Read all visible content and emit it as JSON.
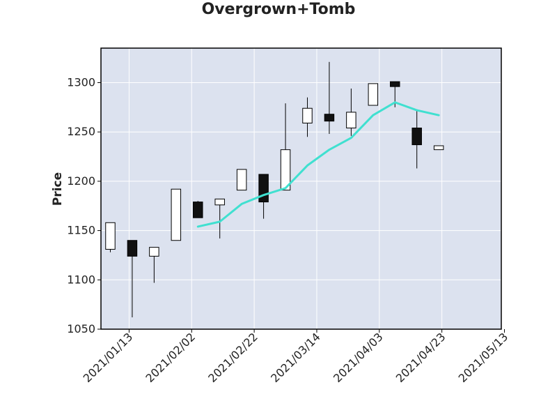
{
  "chart_data": {
    "type": "candlestick",
    "title": "Overgrown+Tomb",
    "xlabel": "",
    "ylabel": "Price",
    "ylim": [
      1050,
      1335
    ],
    "xlim": [
      "2021-01-04",
      "2021-05-12"
    ],
    "yticks": [
      1050,
      1100,
      1150,
      1200,
      1250,
      1300
    ],
    "xticks": [
      "2021/01/13",
      "2021/02/02",
      "2021/02/22",
      "2021/03/14",
      "2021/04/03",
      "2021/04/23",
      "2021/05/13"
    ],
    "grid": true,
    "candles": [
      {
        "date": "2021-01-07",
        "open": 1131,
        "high": 1158,
        "low": 1128,
        "close": 1158
      },
      {
        "date": "2021-01-14",
        "open": 1140,
        "high": 1140,
        "low": 1062,
        "close": 1124
      },
      {
        "date": "2021-01-21",
        "open": 1124,
        "high": 1133,
        "low": 1097,
        "close": 1133
      },
      {
        "date": "2021-01-28",
        "open": 1140,
        "high": 1192,
        "low": 1140,
        "close": 1192
      },
      {
        "date": "2021-02-04",
        "open": 1179,
        "high": 1180,
        "low": 1163,
        "close": 1163
      },
      {
        "date": "2021-02-11",
        "open": 1176,
        "high": 1182,
        "low": 1142,
        "close": 1182
      },
      {
        "date": "2021-02-18",
        "open": 1191,
        "high": 1212,
        "low": 1191,
        "close": 1212
      },
      {
        "date": "2021-02-25",
        "open": 1207,
        "high": 1207,
        "low": 1162,
        "close": 1179
      },
      {
        "date": "2021-03-04",
        "open": 1191,
        "high": 1279,
        "low": 1191,
        "close": 1232
      },
      {
        "date": "2021-03-11",
        "open": 1259,
        "high": 1285,
        "low": 1245,
        "close": 1274
      },
      {
        "date": "2021-03-18",
        "open": 1268,
        "high": 1321,
        "low": 1248,
        "close": 1261
      },
      {
        "date": "2021-03-25",
        "open": 1254,
        "high": 1294,
        "low": 1246,
        "close": 1270
      },
      {
        "date": "2021-04-01",
        "open": 1277,
        "high": 1299,
        "low": 1277,
        "close": 1299
      },
      {
        "date": "2021-04-08",
        "open": 1301,
        "high": 1301,
        "low": 1275,
        "close": 1296
      },
      {
        "date": "2021-04-15",
        "open": 1254,
        "high": 1273,
        "low": 1213,
        "close": 1237
      },
      {
        "date": "2021-04-22",
        "open": 1232,
        "high": 1236,
        "low": 1232,
        "close": 1236
      }
    ],
    "series": [
      {
        "type": "line",
        "color": "#40e0d0",
        "dates": [
          "2021-02-04",
          "2021-02-11",
          "2021-02-18",
          "2021-02-25",
          "2021-03-04",
          "2021-03-11",
          "2021-03-18",
          "2021-03-25",
          "2021-04-01",
          "2021-04-08",
          "2021-04-15",
          "2021-04-22"
        ],
        "values": [
          1154,
          1159,
          1177,
          1186,
          1193,
          1216,
          1232,
          1244,
          1267,
          1280,
          1272,
          1267
        ]
      }
    ],
    "colors": {
      "up_fill": "#ffffff",
      "down_fill": "#111111",
      "edge": "#000000",
      "plot_bg": "#dce2ef",
      "grid": "#ffffff"
    }
  }
}
